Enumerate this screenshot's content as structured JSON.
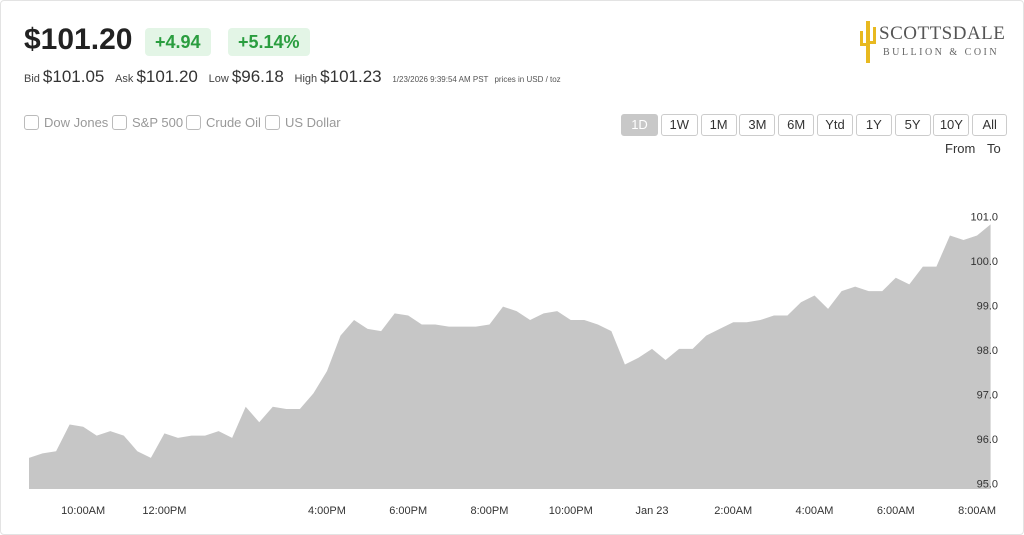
{
  "quote": {
    "price": "$101.20",
    "change": "+4.94",
    "change_pct": "+5.14%",
    "bid_label": "Bid",
    "bid": "$101.05",
    "ask_label": "Ask",
    "ask": "$101.20",
    "low_label": "Low",
    "low": "$96.18",
    "high_label": "High",
    "high": "$101.23",
    "timestamp": "1/23/2026 9:39:54 AM PST",
    "units": "prices in USD / toz"
  },
  "logo": {
    "name": "SCOTTSDALE",
    "tagline": "BULLION & COIN"
  },
  "compare": [
    "Dow Jones",
    "S&P 500",
    "Crude Oil",
    "US Dollar"
  ],
  "ranges": [
    "1D",
    "1W",
    "1M",
    "3M",
    "6M",
    "Ytd",
    "1Y",
    "5Y",
    "10Y",
    "All"
  ],
  "active_range": "1D",
  "date_inputs": [
    "From",
    "To"
  ],
  "chart_data": {
    "type": "area",
    "color": "#c6c6c6",
    "categories": [
      null,
      null,
      null,
      null,
      "10:00AM",
      null,
      null,
      null,
      null,
      null,
      "12:00PM",
      null,
      null,
      null,
      null,
      null,
      null,
      null,
      null,
      null,
      null,
      null,
      "4:00PM",
      null,
      null,
      null,
      null,
      null,
      "6:00PM",
      null,
      null,
      null,
      null,
      null,
      "8:00PM",
      null,
      null,
      null,
      null,
      null,
      "10:00PM",
      null,
      null,
      null,
      null,
      null,
      "Jan 23",
      null,
      null,
      null,
      null,
      null,
      "2:00AM",
      null,
      null,
      null,
      null,
      null,
      "4:00AM",
      null,
      null,
      null,
      null,
      null,
      "6:00AM",
      null,
      null,
      null,
      null,
      null,
      "8:00AM",
      null
    ],
    "values": [
      95.6,
      95.7,
      95.75,
      96.35,
      96.3,
      96.1,
      96.2,
      96.1,
      95.75,
      95.6,
      96.15,
      96.05,
      96.1,
      96.1,
      96.2,
      96.05,
      96.75,
      96.4,
      96.75,
      96.7,
      96.7,
      97.05,
      97.55,
      98.35,
      98.7,
      98.5,
      98.45,
      98.85,
      98.8,
      98.6,
      98.6,
      98.55,
      98.55,
      98.55,
      98.6,
      99.0,
      98.9,
      98.7,
      98.85,
      98.9,
      98.7,
      98.7,
      98.6,
      98.45,
      97.7,
      97.85,
      98.05,
      97.8,
      98.05,
      98.05,
      98.35,
      98.5,
      98.65,
      98.65,
      98.7,
      98.8,
      98.8,
      99.1,
      99.25,
      98.95,
      99.35,
      99.45,
      99.35,
      99.35,
      99.65,
      99.5,
      99.9,
      99.9,
      100.6,
      100.5,
      100.6,
      100.85
    ],
    "ylim": [
      94.9,
      102.5
    ],
    "yticks": [
      {
        "value": 95,
        "label": "95.0"
      },
      {
        "value": 96,
        "label": "96.0"
      },
      {
        "value": 97,
        "label": "97.0"
      },
      {
        "value": 98,
        "label": "98.0"
      },
      {
        "value": 99,
        "label": "99.0"
      },
      {
        "value": 100,
        "label": "100.0"
      },
      {
        "value": 101,
        "label": "101.0"
      }
    ],
    "grid": false
  }
}
